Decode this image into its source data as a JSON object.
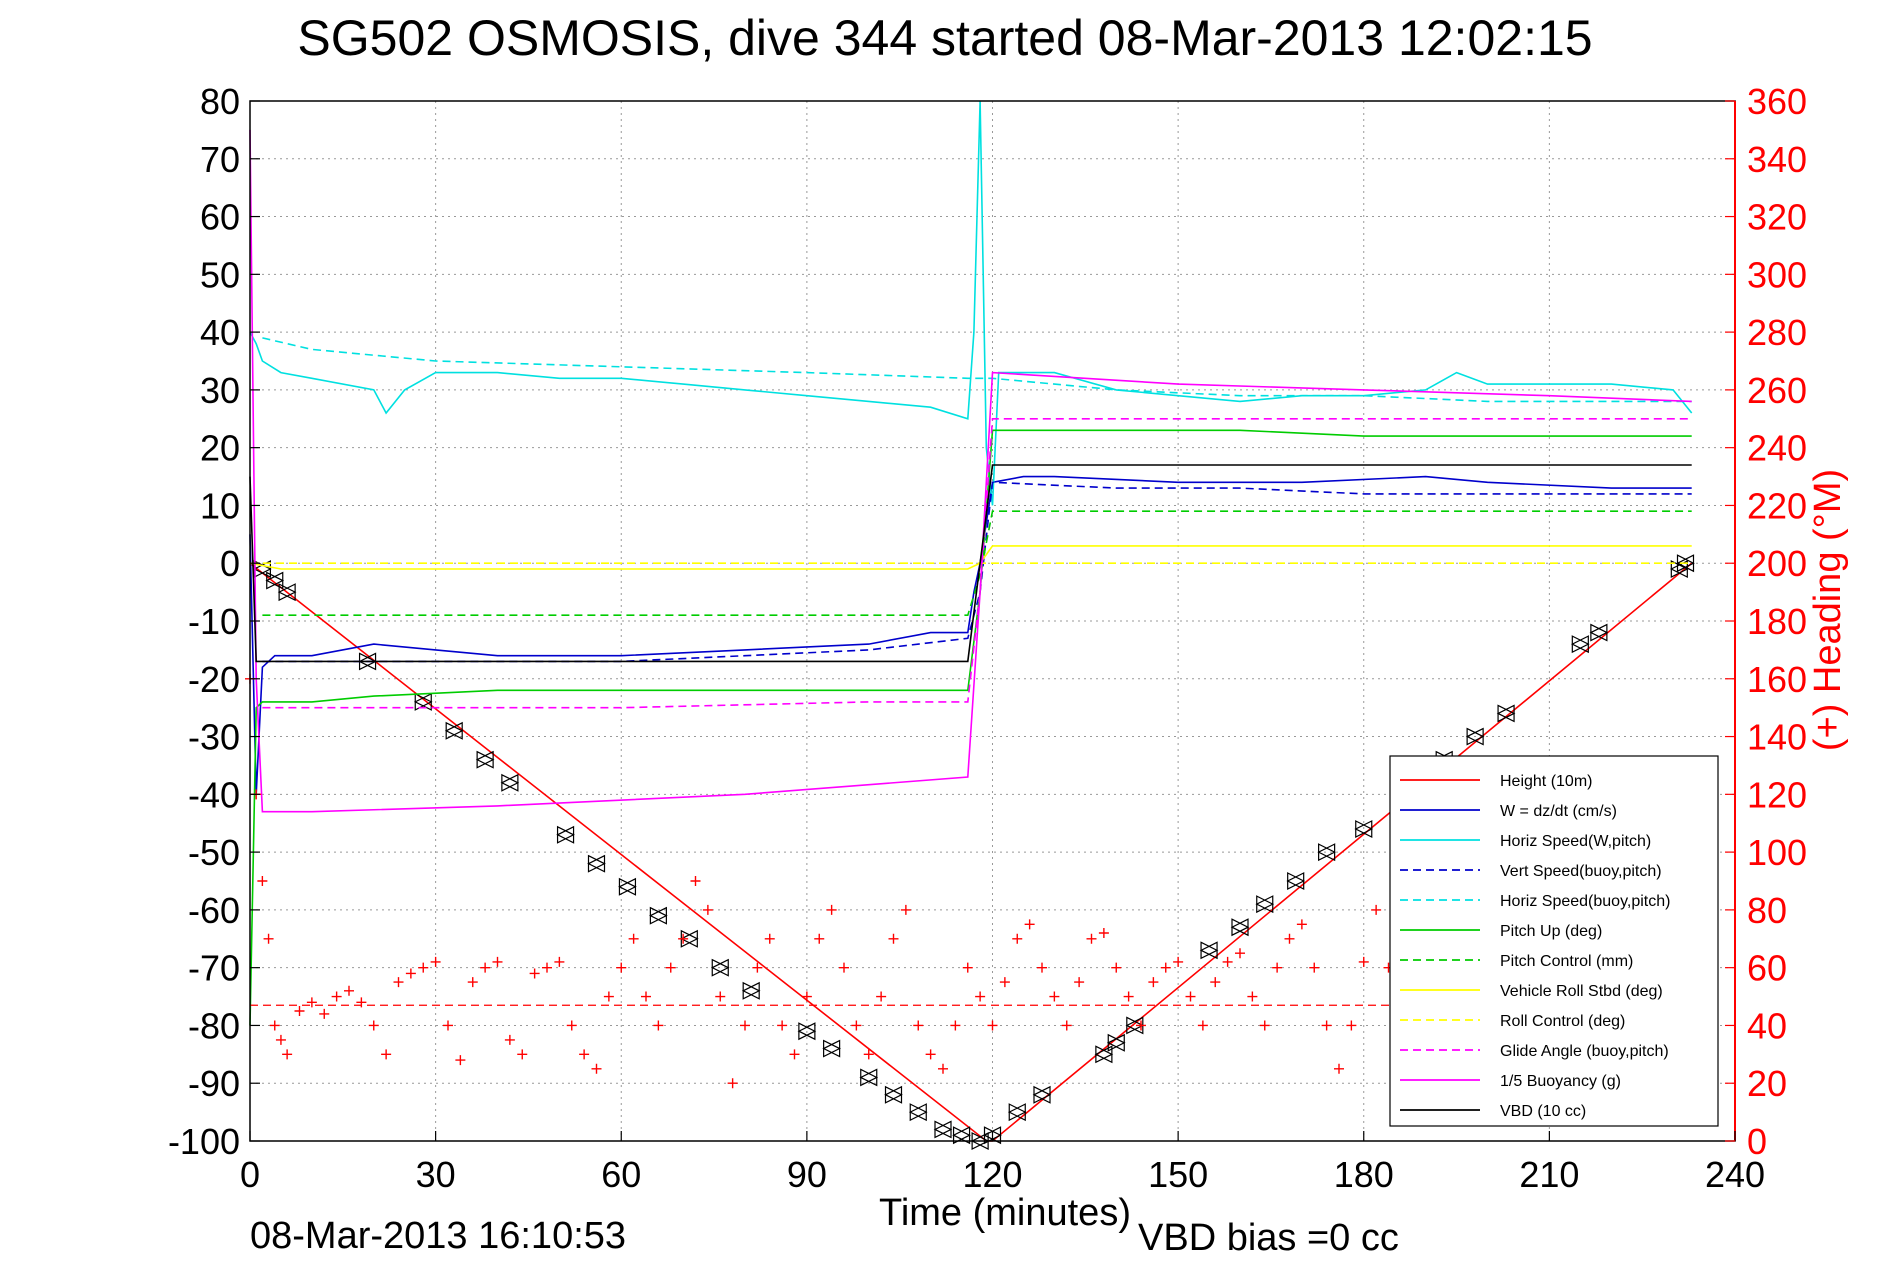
{
  "chart_data": {
    "type": "line",
    "title": "SG502 OSMOSIS, dive 344 started 08-Mar-2013 12:02:15",
    "xlabel": "Time (minutes)",
    "ylabel_right": "(+) Heading (°M)",
    "xlim": [
      0,
      240
    ],
    "ylim": [
      -100,
      80
    ],
    "ylim_right": [
      0,
      360
    ],
    "x_ticks": [
      "0",
      "30",
      "60",
      "90",
      "120",
      "150",
      "180",
      "210",
      "240"
    ],
    "y_ticks": [
      "80",
      "70",
      "60",
      "50",
      "40",
      "30",
      "20",
      "10",
      "0",
      "-10",
      "-20",
      "-30",
      "-40",
      "-50",
      "-60",
      "-70",
      "-80",
      "-90",
      "-100"
    ],
    "y_ticks_right": [
      "360",
      "340",
      "320",
      "300",
      "280",
      "260",
      "240",
      "220",
      "200",
      "180",
      "160",
      "140",
      "120",
      "100",
      "80",
      "60",
      "40",
      "20",
      "0"
    ],
    "grid": true,
    "legend_position": "bottom-right",
    "footer_timestamp": "08-Mar-2013 16:10:53",
    "footer_note": "VBD bias =0 cc",
    "series": [
      {
        "name": "Height (10m)",
        "color": "#ff0000",
        "style": "solid",
        "x": [
          0,
          119,
          120,
          233
        ],
        "y": [
          0,
          -100,
          -100,
          0
        ],
        "markers_x": [
          2,
          4,
          6,
          19,
          28,
          33,
          38,
          42,
          51,
          56,
          61,
          66,
          71,
          76,
          81,
          90,
          94,
          100,
          104,
          108,
          112,
          115,
          118,
          120,
          124,
          128,
          138,
          140,
          143,
          155,
          160,
          164,
          169,
          174,
          180,
          193,
          198,
          203,
          215,
          218,
          231,
          232
        ],
        "markers_y": [
          -1,
          -3,
          -5,
          -17,
          -24,
          -29,
          -34,
          -38,
          -47,
          -52,
          -56,
          -61,
          -65,
          -70,
          -74,
          -81,
          -84,
          -89,
          -92,
          -95,
          -98,
          -99,
          -100,
          -99,
          -95,
          -92,
          -85,
          -83,
          -80,
          -67,
          -63,
          -59,
          -55,
          -50,
          -46,
          -34,
          -30,
          -26,
          -14,
          -12,
          -1,
          0
        ]
      },
      {
        "name": "W = dz/dt (cm/s)",
        "color": "#0000cc",
        "style": "solid",
        "x": [
          0,
          1,
          2,
          4,
          10,
          20,
          30,
          40,
          60,
          80,
          100,
          110,
          116,
          117,
          118,
          120,
          125,
          130,
          150,
          170,
          190,
          200,
          220,
          233
        ],
        "y": [
          5,
          -40,
          -18,
          -16,
          -16,
          -14,
          -15,
          -16,
          -16,
          -15,
          -14,
          -12,
          -12,
          -5,
          0,
          14,
          15,
          15,
          14,
          14,
          15,
          14,
          13,
          13
        ]
      },
      {
        "name": "Horiz Speed(W,pitch)",
        "color": "#00e0e0",
        "style": "solid",
        "x": [
          0,
          1,
          2,
          5,
          10,
          20,
          22,
          25,
          30,
          40,
          50,
          60,
          70,
          80,
          90,
          100,
          110,
          116,
          117,
          118,
          119,
          120,
          121,
          125,
          130,
          140,
          150,
          160,
          170,
          180,
          190,
          195,
          200,
          210,
          220,
          230,
          233
        ],
        "y": [
          40,
          38,
          35,
          33,
          32,
          30,
          26,
          30,
          33,
          33,
          32,
          32,
          31,
          30,
          29,
          28,
          27,
          25,
          40,
          80,
          20,
          10,
          33,
          33,
          33,
          30,
          29,
          28,
          29,
          29,
          30,
          33,
          31,
          31,
          31,
          30,
          26
        ]
      },
      {
        "name": "Vert Speed(buoy,pitch)",
        "color": "#0000cc",
        "style": "dashed",
        "x": [
          2,
          10,
          20,
          40,
          60,
          80,
          100,
          116,
          118,
          120,
          140,
          160,
          180,
          200,
          220,
          233
        ],
        "y": [
          -17,
          -17,
          -17,
          -17,
          -17,
          -16,
          -15,
          -13,
          -5,
          14,
          13,
          13,
          12,
          12,
          12,
          12
        ]
      },
      {
        "name": "Horiz Speed(buoy,pitch)",
        "color": "#00e0e0",
        "style": "dashed",
        "x": [
          2,
          10,
          30,
          60,
          90,
          116,
          120,
          140,
          160,
          180,
          200,
          220,
          233
        ],
        "y": [
          39,
          37,
          35,
          34,
          33,
          32,
          32,
          30,
          29,
          29,
          28,
          28,
          28
        ]
      },
      {
        "name": "Pitch Up (deg)",
        "color": "#00cc00",
        "style": "solid",
        "x": [
          0,
          1,
          2,
          5,
          10,
          20,
          40,
          60,
          80,
          100,
          116,
          118,
          120,
          140,
          160,
          180,
          200,
          220,
          233
        ],
        "y": [
          -80,
          -25,
          -24,
          -24,
          -24,
          -23,
          -22,
          -22,
          -22,
          -22,
          -22,
          -5,
          23,
          23,
          23,
          22,
          22,
          22,
          22
        ]
      },
      {
        "name": "Pitch Control (mm)",
        "color": "#00cc00",
        "style": "dashed",
        "x": [
          2,
          30,
          60,
          90,
          116,
          118,
          120,
          150,
          180,
          210,
          233
        ],
        "y": [
          -9,
          -9,
          -9,
          -9,
          -9,
          -2,
          9,
          9,
          9,
          9,
          9
        ]
      },
      {
        "name": "Vehicle Roll Stbd (deg)",
        "color": "#ffff00",
        "style": "solid",
        "x": [
          0,
          5,
          20,
          40,
          60,
          80,
          100,
          116,
          118,
          120,
          150,
          180,
          210,
          233
        ],
        "y": [
          0,
          -1,
          -1,
          -1,
          -1,
          -1,
          -1,
          -1,
          0,
          3,
          3,
          3,
          3,
          3
        ]
      },
      {
        "name": "Roll Control (deg)",
        "color": "#ffff00",
        "style": "dashed",
        "x": [
          0,
          233
        ],
        "y": [
          0,
          0
        ]
      },
      {
        "name": "Glide Angle (buoy,pitch)",
        "color": "#ff00ff",
        "style": "dashed",
        "x": [
          2,
          20,
          60,
          100,
          116,
          118,
          120,
          150,
          180,
          210,
          233
        ],
        "y": [
          -25,
          -25,
          -25,
          -24,
          -24,
          -5,
          25,
          25,
          25,
          25,
          25
        ]
      },
      {
        "name": "1/5 Buoyancy (g)",
        "color": "#ff00ff",
        "style": "solid",
        "x": [
          0,
          1,
          2,
          5,
          10,
          40,
          80,
          116,
          118,
          120,
          150,
          180,
          210,
          233
        ],
        "y": [
          75,
          -20,
          -43,
          -43,
          -43,
          -42,
          -40,
          -37,
          -5,
          33,
          31,
          30,
          29,
          28
        ]
      },
      {
        "name": "VBD (10 cc)",
        "color": "#000000",
        "style": "solid",
        "x": [
          0,
          1,
          2,
          116,
          118,
          120,
          233
        ],
        "y": [
          15,
          -17,
          -17,
          -17,
          0,
          17,
          17
        ]
      }
    ],
    "heading": {
      "name": "Heading",
      "color": "#ff0000",
      "marker": "+",
      "axis": "right",
      "mean_line_deg": 47,
      "x": [
        0,
        1,
        2,
        3,
        4,
        5,
        6,
        8,
        10,
        12,
        14,
        16,
        18,
        20,
        22,
        24,
        26,
        28,
        30,
        32,
        34,
        36,
        38,
        40,
        42,
        44,
        46,
        48,
        50,
        52,
        54,
        56,
        58,
        60,
        62,
        64,
        66,
        68,
        70,
        72,
        74,
        76,
        78,
        80,
        82,
        84,
        86,
        88,
        90,
        92,
        94,
        96,
        98,
        100,
        102,
        104,
        106,
        108,
        110,
        112,
        114,
        116,
        118,
        120,
        122,
        124,
        126,
        128,
        130,
        132,
        134,
        136,
        138,
        140,
        142,
        144,
        146,
        148,
        150,
        152,
        154,
        156,
        158,
        160,
        162,
        164,
        166,
        168,
        170,
        172,
        174,
        176,
        178,
        180,
        182,
        184,
        186,
        188,
        190,
        192,
        194,
        196,
        198,
        200,
        202,
        204,
        206,
        208,
        210,
        212,
        214,
        216,
        218,
        220,
        222,
        224,
        226,
        228,
        230,
        232
      ],
      "y": [
        160,
        120,
        90,
        70,
        40,
        35,
        30,
        45,
        48,
        44,
        50,
        52,
        48,
        40,
        30,
        55,
        58,
        60,
        62,
        40,
        28,
        55,
        60,
        62,
        35,
        30,
        58,
        60,
        62,
        40,
        30,
        25,
        50,
        60,
        70,
        50,
        40,
        60,
        70,
        90,
        80,
        50,
        20,
        40,
        60,
        70,
        40,
        30,
        50,
        70,
        80,
        60,
        40,
        30,
        50,
        70,
        80,
        40,
        30,
        25,
        40,
        60,
        50,
        40,
        55,
        70,
        75,
        60,
        50,
        40,
        55,
        70,
        72,
        60,
        50,
        40,
        55,
        60,
        62,
        50,
        40,
        55,
        62,
        65,
        50,
        40,
        60,
        70,
        75,
        60,
        40,
        25,
        40,
        62,
        80,
        60,
        40,
        25,
        30,
        55,
        70,
        85,
        60,
        40,
        55,
        70,
        72,
        55,
        40,
        30,
        55,
        62,
        60,
        55,
        40,
        30,
        50,
        60,
        62,
        55
      ]
    }
  },
  "legend": {
    "entries": [
      {
        "label": "Height (10m)",
        "color": "#ff0000",
        "style": "solid"
      },
      {
        "label": "W = dz/dt (cm/s)",
        "color": "#0000cc",
        "style": "solid"
      },
      {
        "label": "Horiz Speed(W,pitch)",
        "color": "#00e0e0",
        "style": "solid"
      },
      {
        "label": "Vert Speed(buoy,pitch)",
        "color": "#0000cc",
        "style": "dashed"
      },
      {
        "label": "Horiz Speed(buoy,pitch)",
        "color": "#00e0e0",
        "style": "dashed"
      },
      {
        "label": "Pitch Up (deg)",
        "color": "#00cc00",
        "style": "solid"
      },
      {
        "label": "Pitch Control (mm)",
        "color": "#00cc00",
        "style": "dashed"
      },
      {
        "label": "Vehicle Roll Stbd (deg)",
        "color": "#ffff00",
        "style": "solid"
      },
      {
        "label": "Roll Control (deg)",
        "color": "#ffff00",
        "style": "dashed"
      },
      {
        "label": "Glide Angle (buoy,pitch)",
        "color": "#ff00ff",
        "style": "dashed"
      },
      {
        "label": "1/5 Buoyancy (g)",
        "color": "#ff00ff",
        "style": "solid"
      },
      {
        "label": "VBD (10 cc)",
        "color": "#000000",
        "style": "solid"
      }
    ]
  }
}
